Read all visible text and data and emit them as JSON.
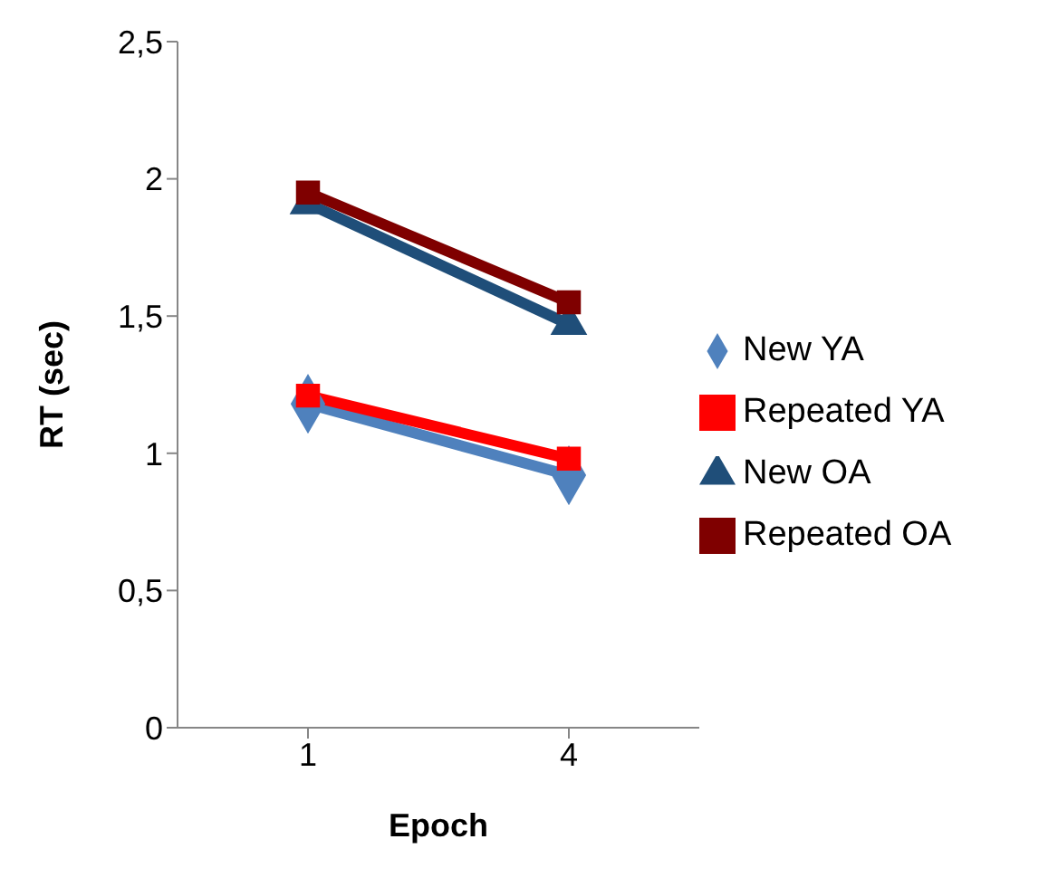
{
  "chart_data": {
    "type": "line",
    "xlabel": "Epoch",
    "ylabel": "RT (sec)",
    "categories": [
      "1",
      "4"
    ],
    "series": [
      {
        "name": "New YA",
        "color": "#4f81bd",
        "values": [
          1.18,
          0.92
        ],
        "marker": "diamond"
      },
      {
        "name": "Repeated YA",
        "color": "#ff0000",
        "values": [
          1.21,
          0.98
        ],
        "marker": "square"
      },
      {
        "name": "New OA",
        "color": "#1f4e79",
        "values": [
          1.91,
          1.47
        ],
        "marker": "triangle"
      },
      {
        "name": "Repeated OA",
        "color": "#7f0000",
        "values": [
          1.95,
          1.55
        ],
        "marker": "square"
      }
    ],
    "ylim": [
      0,
      2.5
    ],
    "yticks": [
      0,
      {
        "value": 0.5,
        "label": "0,5"
      },
      1,
      {
        "value": 1.5,
        "label": "1,5"
      },
      2,
      {
        "value": 2.5,
        "label": "2,5"
      }
    ],
    "grid": false,
    "legend": "right",
    "line_style": "solid"
  }
}
